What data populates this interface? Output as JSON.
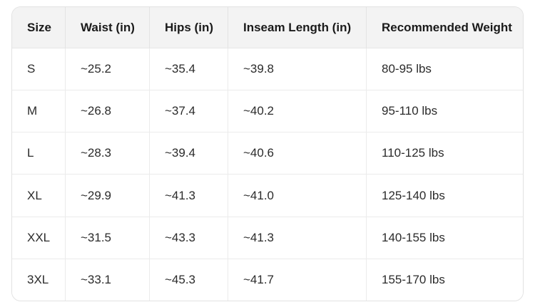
{
  "table": {
    "title": "size-chart",
    "header": [
      "Size",
      "Waist (in)",
      "Hips (in)",
      "Inseam Length (in)",
      "Recommended Weight"
    ],
    "rows": [
      [
        "S",
        "~25.2",
        "~35.4",
        "~39.8",
        "80-95 lbs"
      ],
      [
        "M",
        "~26.8",
        "~37.4",
        "~40.2",
        "95-110 lbs"
      ],
      [
        "L",
        "~28.3",
        "~39.4",
        "~40.6",
        "110-125 lbs"
      ],
      [
        "XL",
        "~29.9",
        "~41.3",
        "~41.0",
        "125-140 lbs"
      ],
      [
        "XXL",
        "~31.5",
        "~43.3",
        "~41.3",
        "140-155 lbs"
      ],
      [
        "3XL",
        "~33.1",
        "~45.3",
        "~41.7",
        "155-170 lbs"
      ]
    ],
    "colors": {
      "header_background": "#f3f3f3",
      "body_background": "#ffffff",
      "divider": "#ebebeb",
      "outer_border": "#e2e2e2",
      "header_text": "#1a1a1a",
      "body_text": "#2b2b2b"
    }
  }
}
